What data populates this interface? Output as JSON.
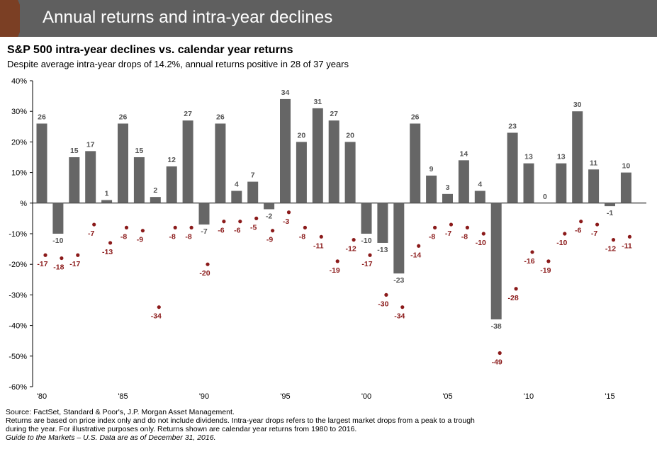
{
  "banner": {
    "title": "Annual returns and intra-year declines"
  },
  "chart_data": {
    "type": "bar",
    "title": "S&P 500 intra-year declines vs. calendar year returns",
    "subtitle": "Despite average intra-year drops of 14.2%, annual returns positive in 28 of 37 years",
    "x": [
      1980,
      1981,
      1982,
      1983,
      1984,
      1985,
      1986,
      1987,
      1988,
      1989,
      1990,
      1991,
      1992,
      1993,
      1994,
      1995,
      1996,
      1997,
      1998,
      1999,
      2000,
      2001,
      2002,
      2003,
      2004,
      2005,
      2006,
      2007,
      2008,
      2009,
      2010,
      2011,
      2012,
      2013,
      2014,
      2015,
      2016
    ],
    "series": [
      {
        "type": "bar",
        "color": "#666666",
        "values": [
          26,
          -10,
          15,
          17,
          1,
          26,
          15,
          2,
          12,
          27,
          -7,
          26,
          4,
          7,
          -2,
          34,
          20,
          31,
          27,
          20,
          -10,
          -13,
          -23,
          26,
          9,
          3,
          14,
          4,
          -38,
          23,
          13,
          0,
          13,
          30,
          11,
          -1,
          10
        ]
      },
      {
        "type": "scatter",
        "color": "#8b1a1a",
        "values": [
          -17,
          -18,
          -17,
          -7,
          -13,
          -8,
          -9,
          -34,
          -8,
          -8,
          -20,
          -6,
          -6,
          -5,
          -9,
          -3,
          -8,
          -11,
          -19,
          -12,
          -17,
          -30,
          -34,
          -14,
          -8,
          -7,
          -8,
          -10,
          -49,
          -28,
          -16,
          -19,
          -10,
          -6,
          -7,
          -12,
          -11
        ]
      }
    ],
    "ylim": [
      -60,
      40
    ],
    "yticks": [
      40,
      30,
      20,
      10,
      0,
      -10,
      -20,
      -30,
      -40,
      -50,
      -60
    ],
    "ytick_labels": [
      "40%",
      "30%",
      "20%",
      "10%",
      "%",
      "-10%",
      "-20%",
      "-30%",
      "-40%",
      "-50%",
      "-60%"
    ],
    "xtick_years": [
      1980,
      1985,
      1990,
      1995,
      2000,
      2005,
      2010,
      2015
    ],
    "xtick_labels": [
      "'80",
      "'85",
      "'90",
      "'95",
      "'00",
      "'05",
      "'10",
      "'15"
    ],
    "grid": false,
    "bar_label_color": "#555555",
    "dot_label_color": "#8b1a1a"
  },
  "footnotes": {
    "source": "Source: FactSet, Standard & Poor's, J.P. Morgan Asset Management.",
    "line2": "Returns are based on price index only and do not include dividends. Intra-year drops refers to the largest market drops from a peak to a trough",
    "line3": "during the year. For illustrative purposes only. Returns shown are calendar year returns from 1980 to 2016.",
    "line4": "Guide to the Markets – U.S. Data are as of December 31, 2016."
  }
}
